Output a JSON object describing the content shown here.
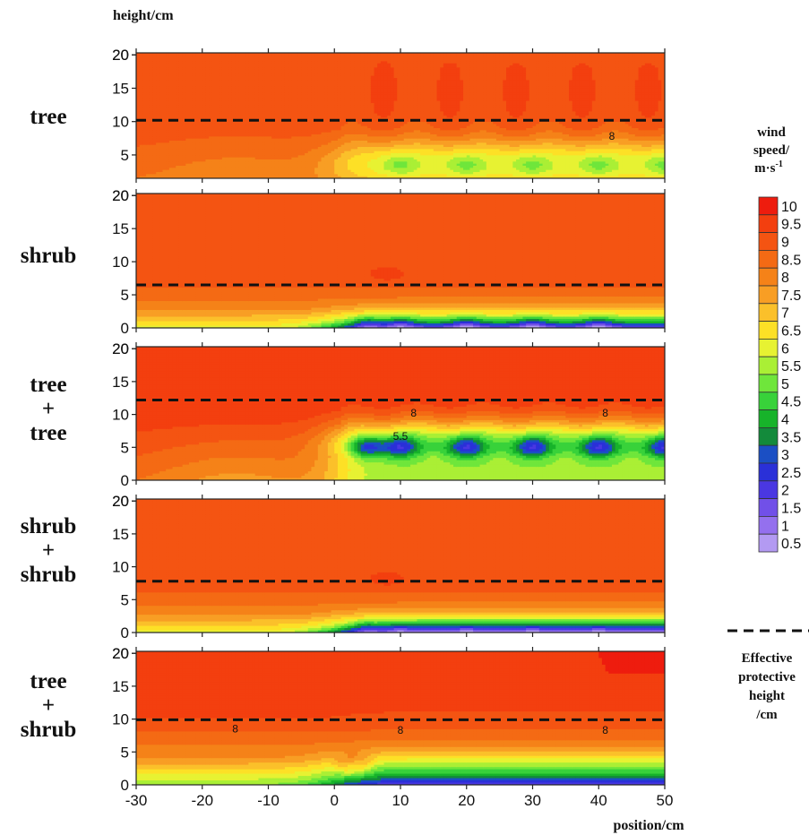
{
  "figure": {
    "y_axis_label": "height/cm",
    "x_axis_label": "position/cm",
    "legend_title": [
      "wind",
      "speed/",
      "m·s"
    ],
    "legend_title_superscript": "-1",
    "line_legend_label": [
      "Effective",
      "protective",
      "height",
      "/cm"
    ]
  },
  "chart_data": [
    {
      "type": "heatmap",
      "panel_label": [
        "tree"
      ],
      "x_ticks": [
        "-30",
        "-20",
        "-10",
        "0",
        "10",
        "20",
        "30",
        "40",
        "50"
      ],
      "y_ticks": [
        "5",
        "10",
        "15",
        "20"
      ],
      "xlim": [
        -30,
        50
      ],
      "ylim": [
        1.5,
        20.3
      ],
      "effective_protective_height": 10.2,
      "contour_labels": [
        {
          "x": 42,
          "y": 7.8,
          "text": "8"
        }
      ],
      "field": {
        "kind": "tree",
        "speed_top": 9.5,
        "speed_low_zone": 6.2,
        "pockets": [
          10,
          20,
          30,
          40,
          50
        ],
        "pocket_height": 3.5,
        "pocket_min": 5.9
      }
    },
    {
      "type": "heatmap",
      "panel_label": [
        "shrub"
      ],
      "x_ticks": [
        "-30",
        "-20",
        "-10",
        "0",
        "10",
        "20",
        "30",
        "40",
        "50"
      ],
      "y_ticks": [
        "0",
        "5",
        "10",
        "15",
        "20"
      ],
      "xlim": [
        -30,
        50
      ],
      "ylim": [
        0,
        20.3
      ],
      "effective_protective_height": 6.5,
      "contour_labels": [],
      "field": {
        "kind": "shrub",
        "speed_top": 9.5,
        "pockets": [
          5,
          10,
          20,
          30,
          40
        ],
        "pocket_height": 0.5,
        "pocket_min": 3.0
      }
    },
    {
      "type": "heatmap",
      "panel_label": [
        "tree",
        "+",
        "tree"
      ],
      "x_ticks": [
        "-30",
        "-20",
        "-10",
        "0",
        "10",
        "20",
        "30",
        "40",
        "50"
      ],
      "y_ticks": [
        "0",
        "5",
        "10",
        "15",
        "20"
      ],
      "xlim": [
        -30,
        50
      ],
      "ylim": [
        0,
        20.3
      ],
      "effective_protective_height": 12.2,
      "contour_labels": [
        {
          "x": 12,
          "y": 10.2,
          "text": "8"
        },
        {
          "x": 41,
          "y": 10.2,
          "text": "8"
        },
        {
          "x": 10,
          "y": 6.7,
          "text": "5.5"
        }
      ],
      "field": {
        "kind": "tree",
        "speed_top": 10.0,
        "speed_low_zone": 5.0,
        "pockets": [
          5,
          10,
          20,
          30,
          40,
          50
        ],
        "pocket_height": 5.0,
        "pocket_min": 3.0
      }
    },
    {
      "type": "heatmap",
      "panel_label": [
        "shrub",
        "+",
        "shrub"
      ],
      "x_ticks": [
        "-30",
        "-20",
        "-10",
        "0",
        "10",
        "20",
        "30",
        "40",
        "50"
      ],
      "y_ticks": [
        "0",
        "5",
        "10",
        "15",
        "20"
      ],
      "xlim": [
        -30,
        50
      ],
      "ylim": [
        0,
        20.3
      ],
      "effective_protective_height": 7.8,
      "contour_labels": [],
      "field": {
        "kind": "shrub",
        "speed_top": 9.5,
        "pockets": [
          5,
          10,
          20,
          30,
          40
        ],
        "pocket_height": 0.5,
        "pocket_min": 1.0
      }
    },
    {
      "type": "heatmap",
      "panel_label": [
        "tree",
        "+",
        "shrub"
      ],
      "x_ticks": [
        "-30",
        "-20",
        "-10",
        "0",
        "10",
        "20",
        "30",
        "40",
        "50"
      ],
      "y_ticks": [
        "0",
        "5",
        "10",
        "15",
        "20"
      ],
      "xlim": [
        -30,
        50
      ],
      "ylim": [
        0,
        20.3
      ],
      "effective_protective_height": 9.9,
      "contour_labels": [
        {
          "x": -15,
          "y": 8.5,
          "text": "8"
        },
        {
          "x": 10,
          "y": 8.3,
          "text": "8"
        },
        {
          "x": 41,
          "y": 8.3,
          "text": "8"
        }
      ],
      "field": {
        "kind": "mixed",
        "speed_top": 10.0,
        "pockets": [
          20,
          30,
          40,
          48
        ],
        "pocket_height": 0.5,
        "pocket_min": 2.5
      }
    }
  ],
  "colorbar": {
    "levels": [
      "10",
      "9.5",
      "9",
      "8.5",
      "8",
      "7.5",
      "7",
      "6.5",
      "6",
      "5.5",
      "5",
      "4.5",
      "4",
      "3.5",
      "3",
      "2.5",
      "2",
      "1.5",
      "1",
      "0.5"
    ],
    "colors": [
      "#ee1c0e",
      "#f33f0f",
      "#f45412",
      "#f46a14",
      "#f58218",
      "#f89e24",
      "#fbc02a",
      "#fde026",
      "#e7f232",
      "#aaef35",
      "#6fe63b",
      "#38d23a",
      "#17b32a",
      "#138a3b",
      "#1b4fc4",
      "#2a30d8",
      "#4a37e2",
      "#7150e8",
      "#9470ee",
      "#b39af2"
    ]
  }
}
